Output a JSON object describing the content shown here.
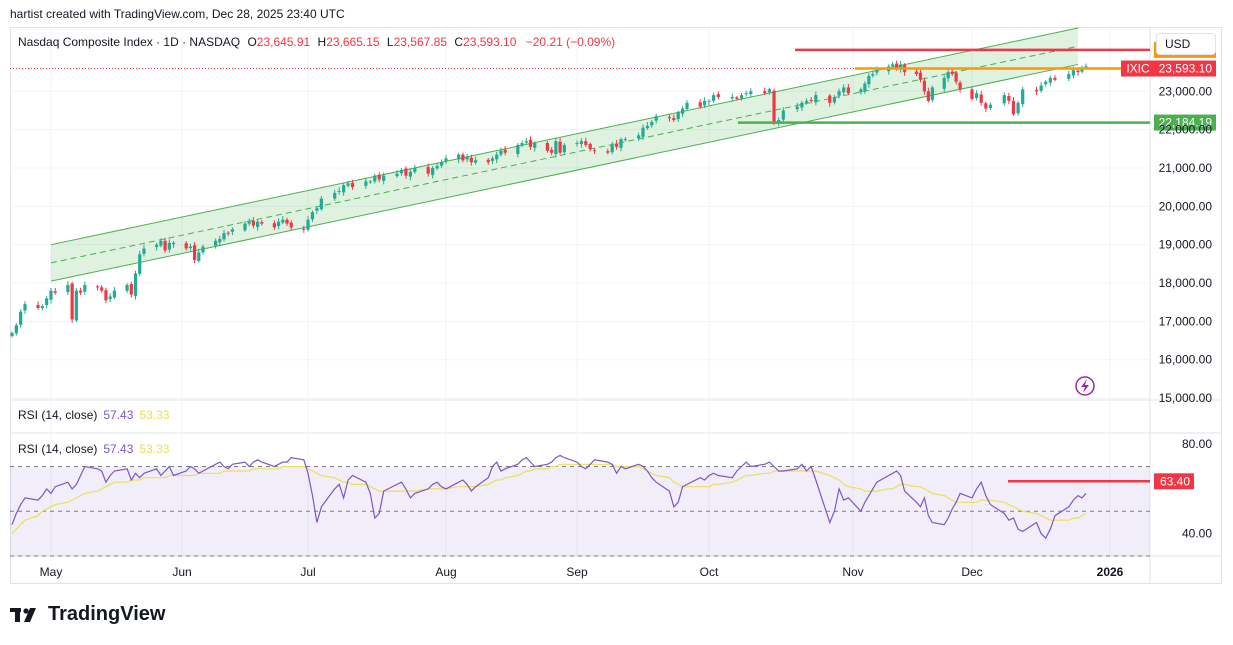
{
  "header": {
    "credit": "hartist created with TradingView.com, Dec 28, 2025 23:40 UTC"
  },
  "legend": {
    "name": "Nasdaq Composite Index · 1D · NASDAQ",
    "o_label": "O",
    "o_value": "23,645.91",
    "h_label": "H",
    "h_value": "23,665.15",
    "l_label": "L",
    "l_value": "23,567.85",
    "c_label": "C",
    "c_value": "23,593.10",
    "change": "−20.21 (−0.09%)"
  },
  "currency": "USD",
  "logo_text": "TradingView",
  "rsi_pane_1": {
    "label": "RSI (14, close)",
    "value": "57.43",
    "ma_value": "53.33"
  },
  "rsi_pane_2": {
    "label": "RSI (14, close)",
    "value": "57.43",
    "ma_value": "53.33"
  },
  "colors": {
    "up": "#22ab94",
    "down": "#f23645",
    "channel": "#4caf50",
    "rsi": "#7e57c2",
    "rsi_ma": "#e8e057",
    "resistance": "#f23645",
    "current": "#ff9800",
    "support": "#4caf50"
  },
  "chart_data": [
    {
      "type": "candlestick",
      "title": "Nasdaq Composite Index · 1D · NASDAQ",
      "x_ticks": [
        "May",
        "Jun",
        "Jul",
        "Aug",
        "Sep",
        "Oct",
        "Nov",
        "Dec",
        "2026"
      ],
      "y_ticks": [
        15000,
        16000,
        17000,
        18000,
        19000,
        20000,
        21000,
        22000,
        23000
      ],
      "ylim": [
        14950,
        24650
      ],
      "date_range": [
        "2025-04-22",
        "2025-12-26"
      ],
      "closes": [
        16700,
        16900,
        17250,
        17450,
        17350,
        17400,
        17600,
        17800,
        17750,
        17950,
        17050,
        17800,
        17750,
        17950,
        17900,
        17800,
        17550,
        17650,
        17800,
        17950,
        17700,
        18250,
        18750,
        18900,
        19000,
        19100,
        18850,
        19050,
        19050,
        18900,
        18950,
        18600,
        18800,
        18950,
        19100,
        19150,
        19300,
        19300,
        19400,
        19550,
        19600,
        19500,
        19600,
        19550,
        19450,
        19600,
        19650,
        19550,
        19450,
        19400,
        19650,
        19850,
        19950,
        20200,
        20350,
        20400,
        20550,
        20600,
        20500,
        20650,
        20650,
        20800,
        20700,
        20800,
        20850,
        20950,
        20800,
        20900,
        21000,
        20850,
        21000,
        21050,
        21150,
        21250,
        21350,
        21200,
        21300,
        21150,
        21200,
        21150,
        21250,
        21350,
        21450,
        21400,
        21600,
        21650,
        21700,
        21550,
        21650,
        21450,
        21400,
        21700,
        21400,
        21600,
        21650,
        21700,
        21600,
        21500,
        21450,
        21400,
        21600,
        21550,
        21750,
        21750,
        21850,
        22050,
        22100,
        22200,
        22350,
        22300,
        22250,
        22450,
        22550,
        22700,
        22600,
        22750,
        22750,
        22900,
        22850,
        22850,
        22800,
        22900,
        22950,
        23000,
        22950,
        23050,
        22200,
        22250,
        22500,
        22600,
        22700,
        22750,
        22750,
        22900,
        22700,
        22850,
        23000,
        23100,
        22950,
        23050,
        23200,
        23400,
        23450,
        23550,
        23650,
        23700,
        23600,
        23700,
        23500,
        23450,
        23300,
        23000,
        22750,
        23100,
        23350,
        23500,
        23450,
        23250,
        23050,
        22800,
        22950,
        22700,
        22550,
        22650,
        22900,
        22750,
        22400,
        22700,
        23050,
        23000,
        23150,
        23250,
        23350,
        23300,
        23450,
        23550,
        23500,
        23600,
        23650,
        23600,
        23700,
        23650,
        23600,
        23650,
        23450,
        23200,
        23150,
        23000,
        22750,
        23050,
        23100,
        23250,
        23400,
        23500,
        23550,
        23593.1
      ],
      "channel": {
        "upper": {
          "start": [
            "2025-05-01",
            19000
          ],
          "end": [
            "2025-12-24",
            24650
          ]
        },
        "lower": {
          "start": [
            "2025-05-01",
            18050
          ],
          "end": [
            "2025-12-24",
            23700
          ]
        }
      },
      "horizontal_lines": [
        {
          "name": "resistance",
          "value": 23609.23,
          "label": "23,609.23"
        },
        {
          "name": "last-price",
          "value": 23593.1,
          "label": "23,593.10",
          "tag": "IXIC"
        },
        {
          "name": "support",
          "value": 22184.19,
          "label": "22,184.19"
        }
      ]
    },
    {
      "type": "line",
      "title": "RSI (14, close)",
      "y_ticks": [
        40,
        80
      ],
      "ylim": [
        30,
        85
      ],
      "bands": {
        "upper": 70,
        "middle": 50,
        "lower": 30
      },
      "series": [
        {
          "name": "RSI",
          "values": [
            44,
            49,
            53,
            56,
            55,
            57,
            60,
            58,
            61,
            63,
            60,
            62,
            66,
            70,
            69,
            68,
            63,
            66,
            68,
            69,
            64,
            67,
            65,
            67,
            69,
            66,
            68,
            70,
            66,
            68,
            70,
            69,
            67,
            68,
            71,
            72,
            70,
            69,
            71,
            72,
            70,
            72,
            73,
            72,
            70,
            71,
            72,
            72,
            74,
            73,
            67,
            57,
            45,
            52,
            60,
            62,
            56,
            64,
            66,
            63,
            58,
            47,
            49,
            59,
            62,
            63,
            60,
            56,
            58,
            60,
            62,
            63,
            61,
            60,
            63,
            64,
            62,
            59,
            61,
            65,
            70,
            72,
            68,
            69,
            71,
            73,
            74,
            72,
            70,
            71,
            72,
            74,
            75,
            74,
            72,
            70,
            69,
            71,
            73,
            72,
            71,
            67,
            70,
            69,
            71,
            70,
            68,
            65,
            63,
            59,
            52,
            54,
            61,
            62,
            65,
            64,
            66,
            67,
            66,
            65,
            68,
            70,
            72,
            70,
            71,
            72,
            70,
            68,
            68,
            69,
            71,
            68,
            70,
            64,
            45,
            50,
            60,
            55,
            56,
            50,
            54,
            57,
            60,
            63,
            66,
            67,
            68,
            66,
            59,
            54,
            52,
            56,
            48,
            45,
            44,
            47,
            51,
            54,
            58,
            56,
            60,
            63,
            57,
            53,
            49,
            46,
            47,
            42,
            41,
            45,
            40,
            38,
            42,
            48,
            52,
            55,
            57,
            56,
            58,
            58,
            59,
            60,
            58,
            60,
            61,
            62,
            63,
            62,
            60,
            58,
            51,
            48,
            46,
            43,
            49,
            53,
            55,
            56,
            57,
            57.43
          ]
        },
        {
          "name": "RSI-based MA",
          "values": [
            40,
            42,
            44,
            46,
            48,
            50,
            51,
            52,
            53,
            54,
            55,
            56,
            57,
            58,
            59,
            60,
            61,
            62,
            63,
            63,
            64,
            64,
            64,
            65,
            65,
            65,
            65,
            66,
            66,
            66,
            66,
            66,
            67,
            67,
            67,
            67,
            68,
            68,
            68,
            68,
            68,
            69,
            69,
            69,
            69,
            69,
            70,
            70,
            70,
            70,
            69,
            68,
            67,
            66,
            65,
            64,
            63,
            63,
            62,
            62,
            61,
            60,
            59,
            59,
            59,
            59,
            59,
            59,
            59,
            60,
            60,
            60,
            60,
            60,
            61,
            61,
            61,
            61,
            61,
            62,
            63,
            64,
            64,
            65,
            66,
            67,
            68,
            68,
            69,
            69,
            70,
            70,
            71,
            71,
            71,
            71,
            71,
            71,
            71,
            71,
            71,
            70,
            70,
            70,
            70,
            69,
            68,
            67,
            66,
            65,
            63,
            62,
            61,
            61,
            61,
            61,
            61,
            62,
            62,
            63,
            64,
            65,
            66,
            66,
            67,
            67,
            68,
            68,
            68,
            68,
            68,
            68,
            68,
            68,
            66,
            65,
            64,
            62,
            61,
            60,
            59,
            59,
            59,
            59,
            60,
            60,
            61,
            62,
            62,
            61,
            61,
            60,
            59,
            58,
            57,
            56,
            55,
            54,
            54,
            54,
            54,
            55,
            55,
            55,
            54,
            53,
            52,
            51,
            50,
            49,
            48,
            47,
            46,
            46,
            46,
            47,
            47,
            48,
            49,
            49,
            50,
            51,
            52,
            53,
            54,
            55,
            56,
            57,
            57,
            56,
            55,
            54,
            53,
            52,
            53,
            53,
            53,
            54,
            54,
            53.33
          ]
        }
      ],
      "horizontal_lines": [
        {
          "name": "rsi-marker",
          "value": 63.4,
          "label": "63.40"
        }
      ]
    }
  ]
}
